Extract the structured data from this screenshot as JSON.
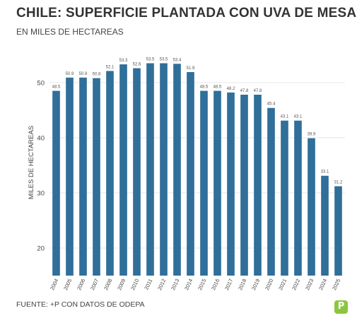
{
  "header": {
    "title": "CHILE: SUPERFICIE PLANTADA CON UVA DE MESA",
    "subtitle": "EN MILES DE HECTAREAS"
  },
  "footer": {
    "source": "FUENTE: +P CON DATOS DE ODEPA",
    "logo_text": "P"
  },
  "chart_data": {
    "type": "bar",
    "title": "CHILE: SUPERFICIE PLANTADA CON UVA DE MESA",
    "subtitle": "EN MILES DE HECTAREAS",
    "xlabel": "",
    "ylabel": "MILES DE HECTAREAS",
    "categories": [
      "2004",
      "2005",
      "2006",
      "2007",
      "2008",
      "2009",
      "2010",
      "2011",
      "2012",
      "2013",
      "2014",
      "2015",
      "2016",
      "2017",
      "2018",
      "2019",
      "2020",
      "2021",
      "2022",
      "2023",
      "2024",
      "2025"
    ],
    "values": [
      48.5,
      50.9,
      50.9,
      50.8,
      52.1,
      53.3,
      52.6,
      53.5,
      53.5,
      53.4,
      51.9,
      48.5,
      48.5,
      48.2,
      47.8,
      47.8,
      45.4,
      43.1,
      43.1,
      39.9,
      33.1,
      31.2
    ],
    "data_labels": [
      "48.5",
      "50.9",
      "50.9",
      "50.8",
      "52.1",
      "53.3",
      "52.6",
      "53.5",
      "53.5",
      "53.4",
      "51.9",
      "48.5",
      "48.5",
      "48.2",
      "47.8",
      "47.8",
      "45.4",
      "43.1",
      "43.1",
      "39.9",
      "33.1",
      "31.2"
    ],
    "yticks": [
      20,
      30,
      40,
      50
    ],
    "ylim": [
      15,
      56
    ],
    "grid": true,
    "colors": {
      "bar": "#2f6f9a",
      "grid": "#e6e6e6"
    }
  }
}
